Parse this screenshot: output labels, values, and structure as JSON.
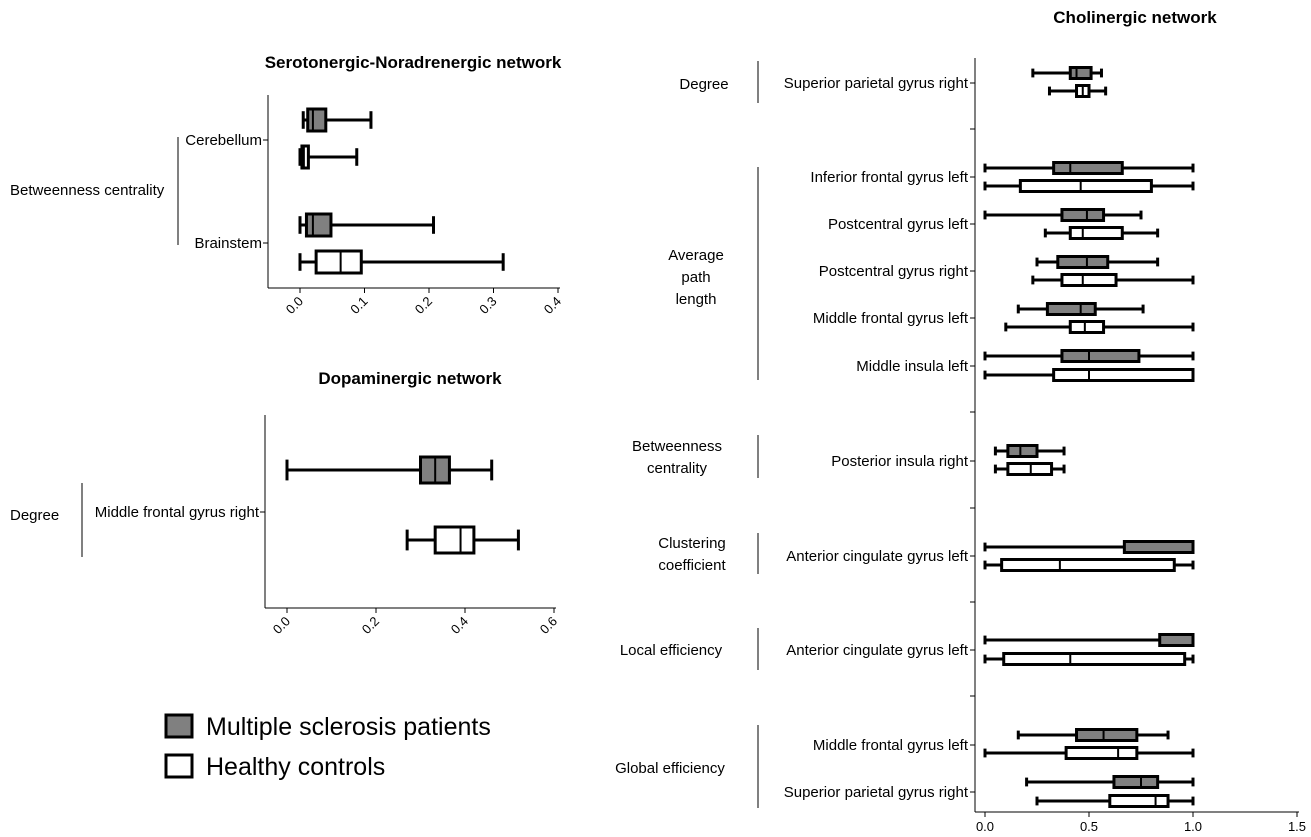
{
  "chart_data": [
    {
      "type": "boxplot",
      "title": "Serotonergic-Noradrenergic network",
      "xlim": [
        0,
        0.4
      ],
      "xticks": [
        "0.0",
        "0.1",
        "0.2",
        "0.3",
        "0.4"
      ],
      "groups": [
        {
          "name": "Betweenness centrality",
          "regions": [
            {
              "name": "Cerebellum",
              "boxes": [
                {
                  "series": "Multiple sclerosis patients",
                  "min": 0.005,
                  "q1": 0.012,
                  "median": 0.02,
                  "q3": 0.04,
                  "max": 0.11
                },
                {
                  "series": "Healthy controls",
                  "min": 0.0,
                  "q1": 0.003,
                  "median": 0.006,
                  "q3": 0.013,
                  "max": 0.088
                }
              ]
            },
            {
              "name": "Brainstem",
              "boxes": [
                {
                  "series": "Multiple sclerosis patients",
                  "min": 0.0,
                  "q1": 0.01,
                  "median": 0.02,
                  "q3": 0.048,
                  "max": 0.207
                },
                {
                  "series": "Healthy controls",
                  "min": 0.0,
                  "q1": 0.025,
                  "median": 0.063,
                  "q3": 0.095,
                  "max": 0.315
                }
              ]
            }
          ]
        }
      ]
    },
    {
      "type": "boxplot",
      "title": "Dopaminergic network",
      "xlim": [
        0,
        0.6
      ],
      "xticks": [
        "0.0",
        "0.2",
        "0.4",
        "0.6"
      ],
      "groups": [
        {
          "name": "Degree",
          "regions": [
            {
              "name": "Middle frontal gyrus right",
              "boxes": [
                {
                  "series": "Multiple sclerosis patients",
                  "min": 0.0,
                  "q1": 0.3,
                  "median": 0.333,
                  "q3": 0.365,
                  "max": 0.46
                },
                {
                  "series": "Healthy controls",
                  "min": 0.27,
                  "q1": 0.333,
                  "median": 0.39,
                  "q3": 0.42,
                  "max": 0.52
                }
              ]
            }
          ]
        }
      ]
    },
    {
      "type": "boxplot",
      "title": "Cholinergic network",
      "xlim": [
        0,
        1.5
      ],
      "xticks": [
        "0.0",
        "0.5",
        "1.0",
        "1.5"
      ],
      "groups": [
        {
          "name": "Degree",
          "regions": [
            {
              "name": "Superior parietal gyrus right",
              "boxes": [
                {
                  "series": "Multiple sclerosis patients",
                  "min": 0.23,
                  "q1": 0.41,
                  "median": 0.44,
                  "q3": 0.51,
                  "max": 0.56
                },
                {
                  "series": "Healthy controls",
                  "min": 0.31,
                  "q1": 0.44,
                  "median": 0.47,
                  "q3": 0.5,
                  "max": 0.58
                }
              ]
            }
          ]
        },
        {
          "name": "Average path length",
          "regions": [
            {
              "name": "Inferior frontal gyrus left",
              "boxes": [
                {
                  "series": "Multiple sclerosis patients",
                  "min": 0.0,
                  "q1": 0.33,
                  "median": 0.41,
                  "q3": 0.66,
                  "max": 1.0
                },
                {
                  "series": "Healthy controls",
                  "min": 0.0,
                  "q1": 0.17,
                  "median": 0.46,
                  "q3": 0.8,
                  "max": 1.0
                }
              ]
            },
            {
              "name": "Postcentral gyrus left",
              "boxes": [
                {
                  "series": "Multiple sclerosis patients",
                  "min": 0.0,
                  "q1": 0.37,
                  "median": 0.49,
                  "q3": 0.57,
                  "max": 0.75
                },
                {
                  "series": "Healthy controls",
                  "min": 0.29,
                  "q1": 0.41,
                  "median": 0.47,
                  "q3": 0.66,
                  "max": 0.83
                }
              ]
            },
            {
              "name": "Postcentral gyrus right",
              "boxes": [
                {
                  "series": "Multiple sclerosis patients",
                  "min": 0.25,
                  "q1": 0.35,
                  "median": 0.49,
                  "q3": 0.59,
                  "max": 0.83
                },
                {
                  "series": "Healthy controls",
                  "min": 0.23,
                  "q1": 0.37,
                  "median": 0.47,
                  "q3": 0.63,
                  "max": 1.0
                }
              ]
            },
            {
              "name": "Middle frontal gyrus left",
              "boxes": [
                {
                  "series": "Multiple sclerosis patients",
                  "min": 0.16,
                  "q1": 0.3,
                  "median": 0.46,
                  "q3": 0.53,
                  "max": 0.76
                },
                {
                  "series": "Healthy controls",
                  "min": 0.1,
                  "q1": 0.41,
                  "median": 0.48,
                  "q3": 0.57,
                  "max": 1.0
                }
              ]
            },
            {
              "name": "Middle insula left",
              "boxes": [
                {
                  "series": "Multiple sclerosis patients",
                  "min": 0.0,
                  "q1": 0.37,
                  "median": 0.5,
                  "q3": 0.74,
                  "max": 1.0
                },
                {
                  "series": "Healthy controls",
                  "min": 0.0,
                  "q1": 0.33,
                  "median": 0.5,
                  "q3": 1.0,
                  "max": 1.0
                }
              ]
            }
          ]
        },
        {
          "name": "Betweenness centrality",
          "regions": [
            {
              "name": "Posterior insula right",
              "boxes": [
                {
                  "series": "Multiple sclerosis patients",
                  "min": 0.05,
                  "q1": 0.11,
                  "median": 0.17,
                  "q3": 0.25,
                  "max": 0.38
                },
                {
                  "series": "Healthy controls",
                  "min": 0.05,
                  "q1": 0.11,
                  "median": 0.22,
                  "q3": 0.32,
                  "max": 0.38
                }
              ]
            }
          ]
        },
        {
          "name": "Clustering coefficient",
          "regions": [
            {
              "name": "Anterior cingulate gyrus left",
              "boxes": [
                {
                  "series": "Multiple sclerosis patients",
                  "min": 0.0,
                  "q1": 0.67,
                  "median": 1.0,
                  "q3": 1.0,
                  "max": 1.0
                },
                {
                  "series": "Healthy controls",
                  "min": 0.0,
                  "q1": 0.08,
                  "median": 0.36,
                  "q3": 0.91,
                  "max": 1.0
                }
              ]
            }
          ]
        },
        {
          "name": "Local efficiency",
          "regions": [
            {
              "name": "Anterior cingulate gyrus left",
              "boxes": [
                {
                  "series": "Multiple sclerosis patients",
                  "min": 0.0,
                  "q1": 0.84,
                  "median": 1.0,
                  "q3": 1.0,
                  "max": 1.0
                },
                {
                  "series": "Healthy controls",
                  "min": 0.0,
                  "q1": 0.09,
                  "median": 0.41,
                  "q3": 0.96,
                  "max": 1.0
                }
              ]
            }
          ]
        },
        {
          "name": "Global efficiency",
          "regions": [
            {
              "name": "Middle frontal gyrus left",
              "boxes": [
                {
                  "series": "Multiple sclerosis patients",
                  "min": 0.16,
                  "q1": 0.44,
                  "median": 0.57,
                  "q3": 0.73,
                  "max": 0.88
                },
                {
                  "series": "Healthy controls",
                  "min": 0.0,
                  "q1": 0.39,
                  "median": 0.64,
                  "q3": 0.73,
                  "max": 1.0
                }
              ]
            },
            {
              "name": "Superior parietal gyrus right",
              "boxes": [
                {
                  "series": "Multiple sclerosis patients",
                  "min": 0.2,
                  "q1": 0.62,
                  "median": 0.75,
                  "q3": 0.83,
                  "max": 1.0
                },
                {
                  "series": "Healthy controls",
                  "min": 0.25,
                  "q1": 0.6,
                  "median": 0.82,
                  "q3": 0.88,
                  "max": 1.0
                }
              ]
            }
          ]
        }
      ]
    }
  ],
  "legend": {
    "items": [
      {
        "name": "Multiple sclerosis patients",
        "color": "#808080"
      },
      {
        "name": "Healthy controls",
        "color": "#ffffff"
      }
    ]
  },
  "colors": {
    "patients": "#808080",
    "controls": "#ffffff",
    "stroke": "#000000"
  }
}
